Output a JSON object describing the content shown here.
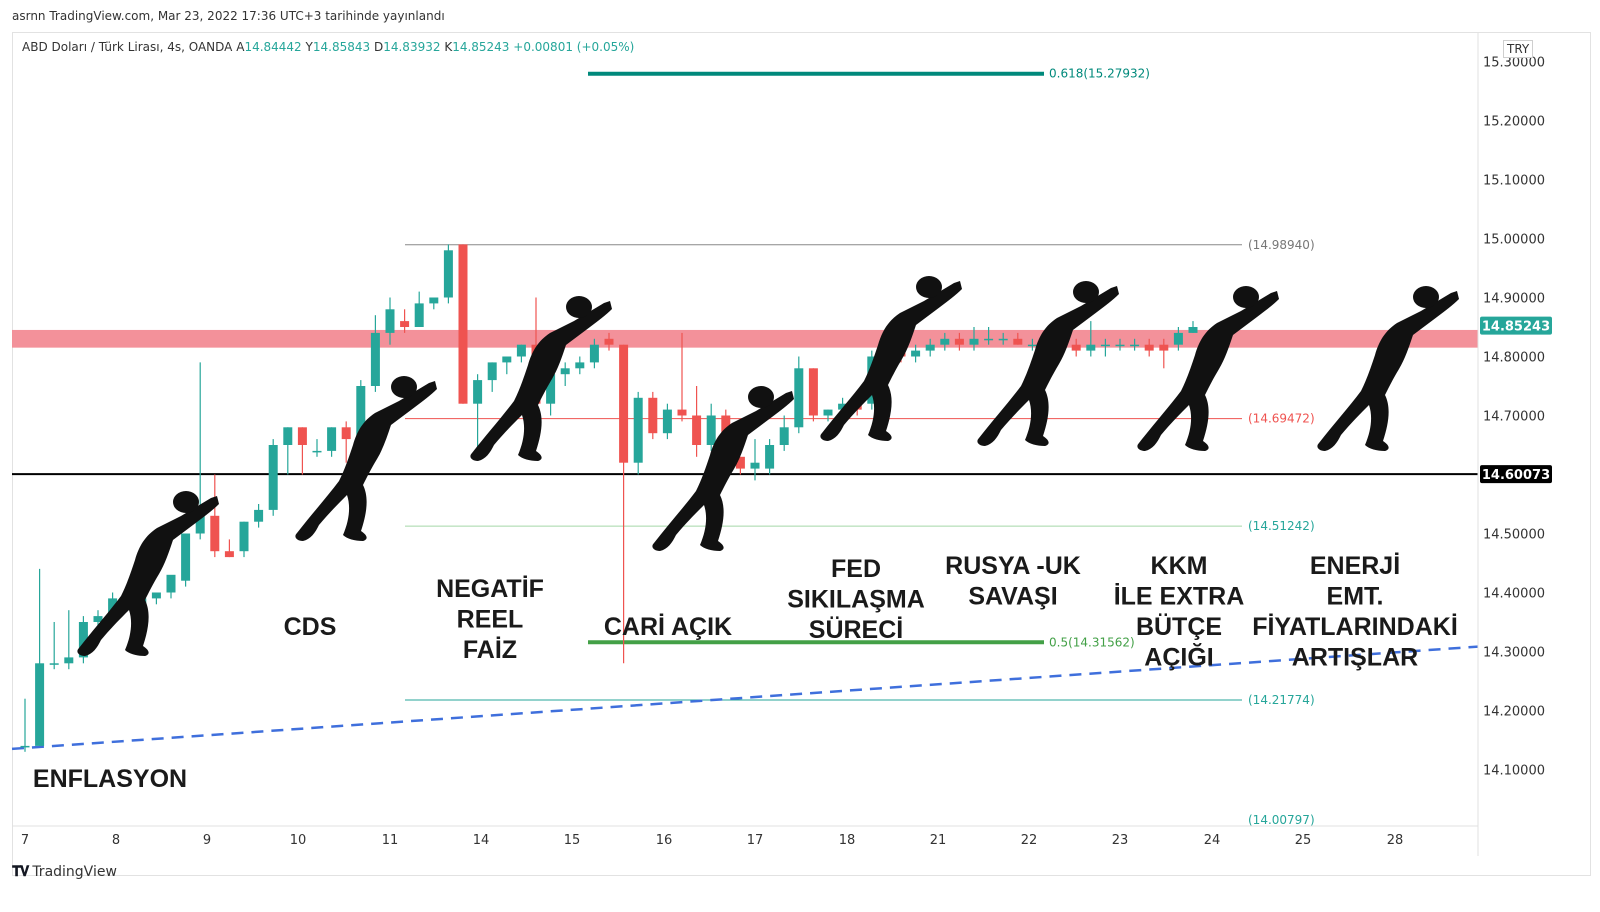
{
  "published": "asrnn TradingView.com, Mar 23, 2022 17:36 UTC+3 tarihinde yayınlandı",
  "header": {
    "symbol": "ABD Doları / Türk Lirası, 4s, OANDA",
    "open_label": "A",
    "open": "14.84442",
    "high_label": "Y",
    "high": "14.85843",
    "low_label": "D",
    "low": "14.83932",
    "close_label": "K",
    "close": "14.85243",
    "change": "+0.00801 (+0.05%)"
  },
  "currency": "TRY",
  "footer": {
    "brand": "TradingView"
  },
  "colors": {
    "up": "#26a69a",
    "down": "#ef5350",
    "zone": "#f28b95",
    "trend": "#3f6fdc",
    "fib_top": "#00897b",
    "fib_mid": "#43a047",
    "fib_low": "#26a69a",
    "ref_line": "#888888",
    "red_line": "#ef5350"
  },
  "chart_data": {
    "type": "candlestick",
    "symbol": "USDTRY",
    "timeframe": "4s",
    "ylim": [
      14.05,
      15.32
    ],
    "y_ticks": [
      "15.30000",
      "15.20000",
      "15.10000",
      "15.00000",
      "14.90000",
      "14.80000",
      "14.70000",
      "14.60000",
      "14.50000",
      "14.40000",
      "14.30000",
      "14.20000",
      "14.10000"
    ],
    "x_ticks": [
      "7",
      "8",
      "9",
      "10",
      "11",
      "14",
      "15",
      "16",
      "17",
      "18",
      "21",
      "22",
      "23",
      "24",
      "25",
      "28"
    ],
    "candles": [
      {
        "o": 14.14,
        "h": 14.22,
        "l": 14.13,
        "c": 14.14
      },
      {
        "o": 14.14,
        "h": 14.44,
        "l": 14.14,
        "c": 14.28
      },
      {
        "o": 14.28,
        "h": 14.35,
        "l": 14.27,
        "c": 14.28
      },
      {
        "o": 14.28,
        "h": 14.37,
        "l": 14.27,
        "c": 14.29
      },
      {
        "o": 14.29,
        "h": 14.36,
        "l": 14.28,
        "c": 14.35
      },
      {
        "o": 14.35,
        "h": 14.37,
        "l": 14.34,
        "c": 14.36
      },
      {
        "o": 14.36,
        "h": 14.4,
        "l": 14.35,
        "c": 14.39
      },
      {
        "o": 14.39,
        "h": 14.4,
        "l": 14.38,
        "c": 14.38
      },
      {
        "o": 14.38,
        "h": 14.48,
        "l": 14.37,
        "c": 14.39
      },
      {
        "o": 14.39,
        "h": 14.4,
        "l": 14.38,
        "c": 14.4
      },
      {
        "o": 14.4,
        "h": 14.42,
        "l": 14.39,
        "c": 14.43
      },
      {
        "o": 14.42,
        "h": 14.5,
        "l": 14.41,
        "c": 14.5
      },
      {
        "o": 14.5,
        "h": 14.79,
        "l": 14.49,
        "c": 14.53
      },
      {
        "o": 14.53,
        "h": 14.6,
        "l": 14.46,
        "c": 14.47
      },
      {
        "o": 14.47,
        "h": 14.49,
        "l": 14.46,
        "c": 14.46
      },
      {
        "o": 14.47,
        "h": 14.52,
        "l": 14.46,
        "c": 14.52
      },
      {
        "o": 14.52,
        "h": 14.55,
        "l": 14.51,
        "c": 14.54
      },
      {
        "o": 14.54,
        "h": 14.66,
        "l": 14.53,
        "c": 14.65
      },
      {
        "o": 14.65,
        "h": 14.68,
        "l": 14.6,
        "c": 14.68
      },
      {
        "o": 14.68,
        "h": 14.68,
        "l": 14.6,
        "c": 14.65
      },
      {
        "o": 14.64,
        "h": 14.66,
        "l": 14.63,
        "c": 14.64
      },
      {
        "o": 14.64,
        "h": 14.68,
        "l": 14.63,
        "c": 14.68
      },
      {
        "o": 14.68,
        "h": 14.69,
        "l": 14.62,
        "c": 14.66
      },
      {
        "o": 14.66,
        "h": 14.76,
        "l": 14.65,
        "c": 14.75
      },
      {
        "o": 14.75,
        "h": 14.87,
        "l": 14.74,
        "c": 14.84
      },
      {
        "o": 14.84,
        "h": 14.9,
        "l": 14.82,
        "c": 14.88
      },
      {
        "o": 14.86,
        "h": 14.88,
        "l": 14.84,
        "c": 14.85
      },
      {
        "o": 14.85,
        "h": 14.91,
        "l": 14.85,
        "c": 14.89
      },
      {
        "o": 14.89,
        "h": 14.9,
        "l": 14.88,
        "c": 14.9
      },
      {
        "o": 14.9,
        "h": 14.99,
        "l": 14.89,
        "c": 14.98
      },
      {
        "o": 14.99,
        "h": 14.99,
        "l": 14.72,
        "c": 14.72
      },
      {
        "o": 14.72,
        "h": 14.77,
        "l": 14.63,
        "c": 14.76
      },
      {
        "o": 14.76,
        "h": 14.79,
        "l": 14.74,
        "c": 14.79
      },
      {
        "o": 14.79,
        "h": 14.8,
        "l": 14.77,
        "c": 14.8
      },
      {
        "o": 14.8,
        "h": 14.82,
        "l": 14.79,
        "c": 14.82
      },
      {
        "o": 14.82,
        "h": 14.9,
        "l": 14.67,
        "c": 14.72
      },
      {
        "o": 14.72,
        "h": 14.78,
        "l": 14.7,
        "c": 14.77
      },
      {
        "o": 14.77,
        "h": 14.79,
        "l": 14.75,
        "c": 14.78
      },
      {
        "o": 14.78,
        "h": 14.8,
        "l": 14.77,
        "c": 14.79
      },
      {
        "o": 14.79,
        "h": 14.83,
        "l": 14.78,
        "c": 14.82
      },
      {
        "o": 14.83,
        "h": 14.84,
        "l": 14.81,
        "c": 14.82
      },
      {
        "o": 14.82,
        "h": 14.82,
        "l": 14.28,
        "c": 14.62
      },
      {
        "o": 14.62,
        "h": 14.74,
        "l": 14.6,
        "c": 14.73
      },
      {
        "o": 14.73,
        "h": 14.74,
        "l": 14.66,
        "c": 14.67
      },
      {
        "o": 14.67,
        "h": 14.72,
        "l": 14.66,
        "c": 14.71
      },
      {
        "o": 14.71,
        "h": 14.84,
        "l": 14.69,
        "c": 14.7
      },
      {
        "o": 14.7,
        "h": 14.75,
        "l": 14.63,
        "c": 14.65
      },
      {
        "o": 14.65,
        "h": 14.72,
        "l": 14.64,
        "c": 14.7
      },
      {
        "o": 14.7,
        "h": 14.71,
        "l": 14.62,
        "c": 14.63
      },
      {
        "o": 14.63,
        "h": 14.63,
        "l": 14.6,
        "c": 14.61
      },
      {
        "o": 14.61,
        "h": 14.66,
        "l": 14.59,
        "c": 14.62
      },
      {
        "o": 14.61,
        "h": 14.66,
        "l": 14.6,
        "c": 14.65
      },
      {
        "o": 14.65,
        "h": 14.7,
        "l": 14.64,
        "c": 14.68
      },
      {
        "o": 14.68,
        "h": 14.8,
        "l": 14.67,
        "c": 14.78
      },
      {
        "o": 14.78,
        "h": 14.78,
        "l": 14.69,
        "c": 14.7
      },
      {
        "o": 14.7,
        "h": 14.71,
        "l": 14.69,
        "c": 14.71
      },
      {
        "o": 14.71,
        "h": 14.73,
        "l": 14.7,
        "c": 14.72
      },
      {
        "o": 14.72,
        "h": 14.73,
        "l": 14.7,
        "c": 14.71
      },
      {
        "o": 14.72,
        "h": 14.81,
        "l": 14.71,
        "c": 14.8
      },
      {
        "o": 14.8,
        "h": 14.83,
        "l": 14.79,
        "c": 14.82
      },
      {
        "o": 14.82,
        "h": 14.83,
        "l": 14.79,
        "c": 14.8
      },
      {
        "o": 14.8,
        "h": 14.82,
        "l": 14.79,
        "c": 14.81
      },
      {
        "o": 14.81,
        "h": 14.83,
        "l": 14.8,
        "c": 14.82
      },
      {
        "o": 14.82,
        "h": 14.84,
        "l": 14.81,
        "c": 14.83
      },
      {
        "o": 14.83,
        "h": 14.84,
        "l": 14.81,
        "c": 14.82
      },
      {
        "o": 14.82,
        "h": 14.85,
        "l": 14.81,
        "c": 14.83
      },
      {
        "o": 14.83,
        "h": 14.85,
        "l": 14.82,
        "c": 14.83
      },
      {
        "o": 14.83,
        "h": 14.84,
        "l": 14.82,
        "c": 14.83
      },
      {
        "o": 14.83,
        "h": 14.84,
        "l": 14.82,
        "c": 14.82
      },
      {
        "o": 14.82,
        "h": 14.83,
        "l": 14.81,
        "c": 14.82
      },
      {
        "o": 14.82,
        "h": 14.83,
        "l": 14.81,
        "c": 14.82
      },
      {
        "o": 14.82,
        "h": 14.84,
        "l": 14.81,
        "c": 14.82
      },
      {
        "o": 14.82,
        "h": 14.83,
        "l": 14.8,
        "c": 14.81
      },
      {
        "o": 14.81,
        "h": 14.86,
        "l": 14.8,
        "c": 14.82
      },
      {
        "o": 14.82,
        "h": 14.83,
        "l": 14.8,
        "c": 14.82
      },
      {
        "o": 14.82,
        "h": 14.83,
        "l": 14.81,
        "c": 14.82
      },
      {
        "o": 14.82,
        "h": 14.83,
        "l": 14.81,
        "c": 14.82
      },
      {
        "o": 14.82,
        "h": 14.83,
        "l": 14.8,
        "c": 14.81
      },
      {
        "o": 14.82,
        "h": 14.83,
        "l": 14.78,
        "c": 14.81
      },
      {
        "o": 14.82,
        "h": 14.85,
        "l": 14.81,
        "c": 14.84
      },
      {
        "o": 14.84,
        "h": 14.86,
        "l": 14.84,
        "c": 14.85
      }
    ],
    "resistance_zone": [
      14.815,
      14.845
    ],
    "horizontal_line": 14.60073,
    "price_labels": [
      {
        "value": 14.85243,
        "label": "14.85243",
        "style": "green"
      },
      {
        "value": 14.60073,
        "label": "14.60073",
        "style": "black"
      }
    ],
    "levels": [
      {
        "value": 15.27932,
        "label": "0.618(15.27932)",
        "style": "fib_top"
      },
      {
        "value": 14.9894,
        "label": "(14.98940)",
        "style": "ref_line"
      },
      {
        "value": 14.69472,
        "label": "(14.69472)",
        "style": "red_line"
      },
      {
        "value": 14.51242,
        "label": "(14.51242)",
        "style": "fib_low"
      },
      {
        "value": 14.31562,
        "label": "0.5(14.31562)",
        "style": "fib_mid"
      },
      {
        "value": 14.21774,
        "label": "(14.21774)",
        "style": "fib_low"
      },
      {
        "value": 14.00797,
        "label": "(14.00797)",
        "style": "fib_low"
      }
    ],
    "trendline": [
      14.14,
      14.31
    ],
    "annotations": [
      {
        "lines": [
          "ENFLASYON"
        ]
      },
      {
        "lines": [
          "CDS"
        ]
      },
      {
        "lines": [
          "NEGATİF",
          "REEL",
          "FAİZ"
        ]
      },
      {
        "lines": [
          "CARİ AÇIK"
        ]
      },
      {
        "lines": [
          "FED",
          "SIKILAŞMA",
          "SÜRECİ"
        ]
      },
      {
        "lines": [
          "RUSYA -UK",
          "SAVAŞI"
        ]
      },
      {
        "lines": [
          "KKM",
          "İLE EXTRA",
          "BÜTÇE",
          "AÇIĞI"
        ]
      },
      {
        "lines": [
          "ENERJİ",
          "EMT.",
          "FİYATLARINDAKİ",
          "ARTIŞLAR"
        ]
      }
    ]
  }
}
